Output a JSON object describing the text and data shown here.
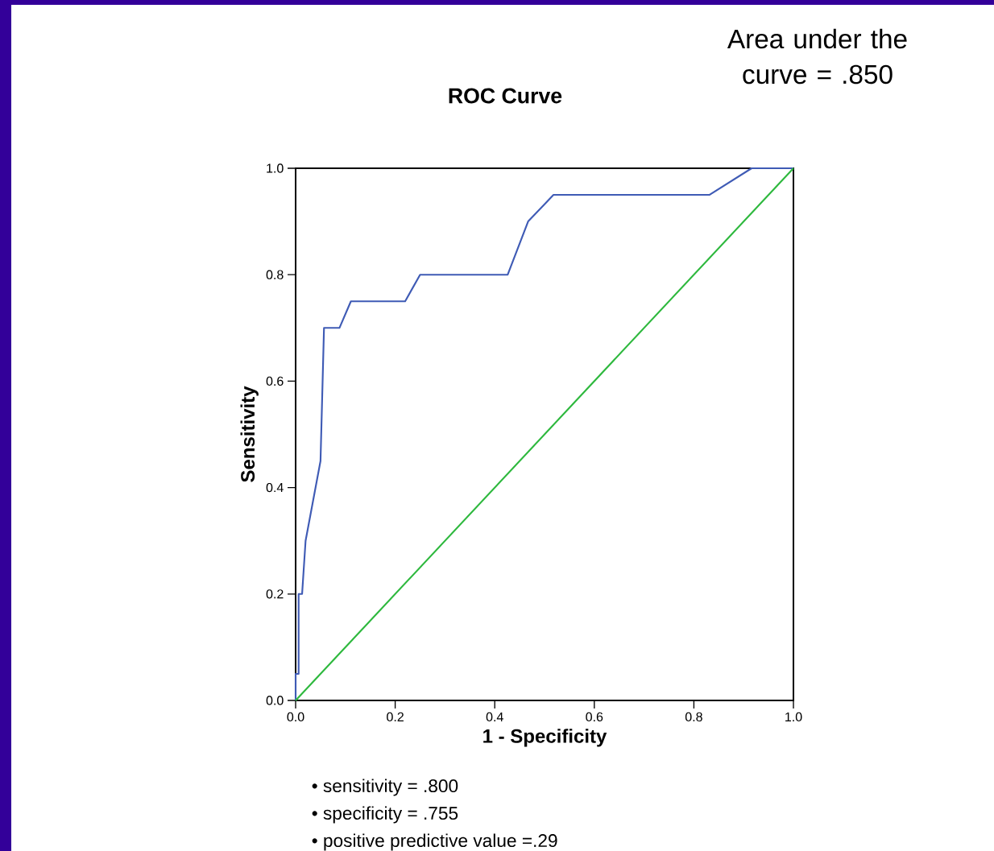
{
  "chart_data": {
    "type": "line",
    "title": "ROC Curve",
    "xlabel": "1 - Specificity",
    "ylabel": "Sensitivity",
    "annotations": [
      "Area under the curve = .850",
      "• sensitivity = .800",
      "• specificity = .755",
      "• positive predictive value =.29"
    ],
    "xlim": [
      0,
      1
    ],
    "ylim": [
      0,
      1
    ],
    "xticks": [
      {
        "value": 0,
        "label": "0.0"
      },
      {
        "value": 0.2,
        "label": "0.2"
      },
      {
        "value": 0.4,
        "label": "0.4"
      },
      {
        "value": 0.6,
        "label": "0.6"
      },
      {
        "value": 0.8,
        "label": "0.8"
      },
      {
        "value": 1,
        "label": "1.0"
      }
    ],
    "yticks": [
      {
        "value": 0,
        "label": "0.0"
      },
      {
        "value": 0.2,
        "label": "0.2"
      },
      {
        "value": 0.4,
        "label": "0.4"
      },
      {
        "value": 0.6,
        "label": "0.6"
      },
      {
        "value": 0.8,
        "label": "0.8"
      },
      {
        "value": 1,
        "label": "1.0"
      }
    ],
    "marker": "none",
    "line_style": "solid",
    "series": [
      {
        "color": "#3f5bb5",
        "x": [
          0,
          0,
          0.006,
          0.006,
          0.013,
          0.02,
          0.05,
          0.057,
          0.088,
          0.111,
          0.22,
          0.25,
          0.426,
          0.467,
          0.518,
          0.831,
          0.916,
          1
        ],
        "values": [
          0,
          0.05,
          0.05,
          0.2,
          0.2,
          0.3,
          0.45,
          0.7,
          0.7,
          0.75,
          0.75,
          0.8,
          0.8,
          0.9,
          0.95,
          0.95,
          1,
          1
        ]
      },
      {
        "color": "#2db83d",
        "x": [
          0,
          1
        ],
        "values": [
          0,
          1
        ]
      }
    ]
  }
}
